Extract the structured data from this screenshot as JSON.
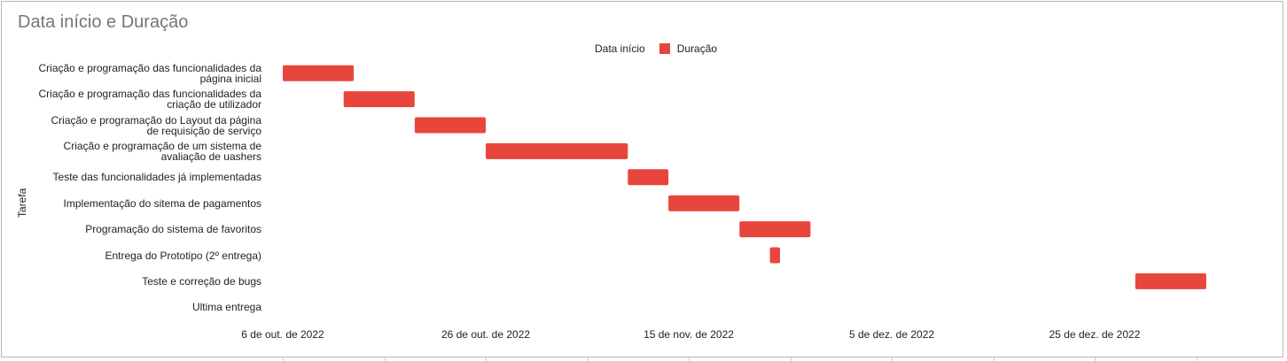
{
  "chart_data": {
    "type": "bar",
    "subtype": "gantt",
    "title": "Data início e Duração",
    "ylabel": "Tarefa",
    "legend": {
      "placement": "top",
      "entries": [
        {
          "name": "Data início",
          "color": "transparent"
        },
        {
          "name": "Duração",
          "color": "#e8453c"
        }
      ]
    },
    "x_axis": {
      "ticks": [
        "6 de out. de 2022",
        "26 de out. de 2022",
        "15 de nov. de 2022",
        "5 de dez. de 2022",
        "25 de dez. de 2022"
      ],
      "tick_dates": [
        "2022-10-06",
        "2022-10-26",
        "2022-11-15",
        "2022-12-05",
        "2022-12-25"
      ],
      "range": [
        "2022-10-06",
        "2023-01-04"
      ]
    },
    "categories": [
      "Criação e programação das funcionalidades da página inicial",
      "Criação e programação das funcionalidades da criação de utilizador",
      "Criação e programação do Layout da página de requisição de serviço",
      "Criação e programação de um sistema de avaliação de uashers",
      "Teste das funcionalidades já implementadas",
      "Implementação do sitema de pagamentos",
      "Programação do sistema de favoritos",
      "Entrega do Prototipo (2º entrega)",
      "Teste e correção de bugs",
      "Ultima entrega"
    ],
    "series": [
      {
        "name": "Data início",
        "values": [
          "2022-10-06",
          "2022-10-12",
          "2022-10-19",
          "2022-10-26",
          "2022-11-09",
          "2022-11-13",
          "2022-11-20",
          "2022-11-23",
          "2022-12-29",
          "2023-01-04"
        ]
      },
      {
        "name": "Duração",
        "values": [
          7,
          7,
          7,
          14,
          4,
          7,
          7,
          1,
          7,
          0
        ],
        "unit": "days"
      }
    ],
    "bar_color": "#e8453c"
  }
}
